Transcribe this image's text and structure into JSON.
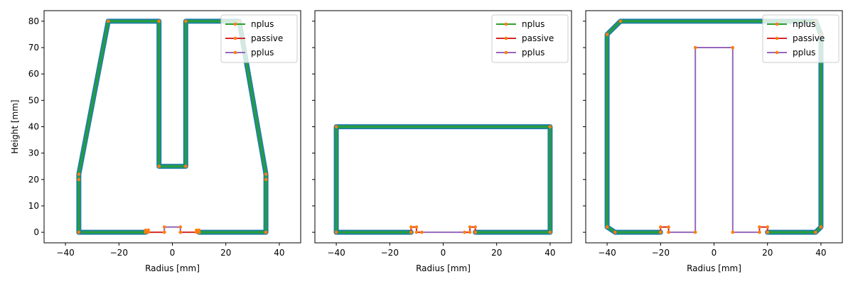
{
  "chart_data": [
    {
      "type": "line",
      "xlabel": "Radius [mm]",
      "ylabel": "Height [mm]",
      "xlim": [
        -48,
        48
      ],
      "ylim": [
        -4,
        84
      ],
      "xticks": [
        -40,
        -20,
        0,
        20,
        40
      ],
      "yticks": [
        0,
        10,
        20,
        30,
        40,
        50,
        60,
        70,
        80
      ],
      "legend_position": "top-right",
      "series": [
        {
          "name": "nplus",
          "color": "#2ca02c",
          "segments": [
            [
              [
                -35,
                0
              ],
              [
                -10,
                0
              ]
            ],
            [
              [
                10,
                0
              ],
              [
                35,
                0
              ],
              [
                35,
                20
              ],
              [
                35,
                22
              ],
              [
                25,
                80
              ],
              [
                5,
                80
              ],
              [
                5,
                25
              ],
              [
                -5,
                25
              ],
              [
                -5,
                80
              ],
              [
                -24,
                80
              ],
              [
                -35,
                22
              ],
              [
                -35,
                20
              ],
              [
                -35,
                0
              ]
            ]
          ]
        },
        {
          "name": "passive",
          "color": "#d62728",
          "segments": [
            [
              [
                -10,
                0
              ],
              [
                -10,
                0.8
              ],
              [
                -9,
                0.8
              ],
              [
                -9,
                0
              ],
              [
                -3,
                0
              ]
            ],
            [
              [
                3,
                0
              ],
              [
                9,
                0
              ],
              [
                9,
                0.8
              ],
              [
                10,
                0.8
              ],
              [
                10,
                0
              ]
            ]
          ]
        },
        {
          "name": "pplus",
          "color": "#9467bd",
          "segments": [
            [
              [
                -3,
                0
              ],
              [
                -3,
                2
              ],
              [
                3,
                2
              ],
              [
                3,
                0
              ]
            ]
          ]
        }
      ]
    },
    {
      "type": "line",
      "xlabel": "Radius [mm]",
      "ylabel": "",
      "xlim": [
        -48,
        48
      ],
      "ylim": [
        -4,
        84
      ],
      "xticks": [
        -40,
        -20,
        0,
        20,
        40
      ],
      "yticks": [
        0,
        10,
        20,
        30,
        40,
        50,
        60,
        70,
        80
      ],
      "legend_position": "top-right",
      "series": [
        {
          "name": "nplus",
          "color": "#2ca02c",
          "segments": [
            [
              [
                -40,
                0
              ],
              [
                -12,
                0
              ]
            ],
            [
              [
                12,
                0
              ],
              [
                40,
                0
              ],
              [
                40,
                40
              ],
              [
                -40,
                40
              ],
              [
                -40,
                0
              ]
            ]
          ]
        },
        {
          "name": "passive",
          "color": "#d62728",
          "segments": [
            [
              [
                -12,
                0
              ],
              [
                -12,
                2
              ],
              [
                -10,
                2
              ],
              [
                -10,
                0
              ],
              [
                -8,
                0
              ]
            ],
            [
              [
                8,
                0
              ],
              [
                10,
                0
              ],
              [
                10,
                2
              ],
              [
                12,
                2
              ],
              [
                12,
                0
              ]
            ]
          ]
        },
        {
          "name": "pplus",
          "color": "#9467bd",
          "segments": [
            [
              [
                -8,
                0
              ],
              [
                8,
                0
              ]
            ]
          ]
        }
      ]
    },
    {
      "type": "line",
      "xlabel": "Radius [mm]",
      "ylabel": "",
      "xlim": [
        -48,
        48
      ],
      "ylim": [
        -4,
        84
      ],
      "xticks": [
        -40,
        -20,
        0,
        20,
        40
      ],
      "yticks": [
        0,
        10,
        20,
        30,
        40,
        50,
        60,
        70,
        80
      ],
      "legend_position": "top-right",
      "series": [
        {
          "name": "nplus",
          "color": "#2ca02c",
          "segments": [
            [
              [
                -37,
                0
              ],
              [
                -20,
                0
              ]
            ],
            [
              [
                20,
                0
              ],
              [
                38,
                0
              ],
              [
                40,
                2
              ],
              [
                40,
                75
              ],
              [
                38,
                80
              ],
              [
                -35,
                80
              ],
              [
                -40,
                75
              ],
              [
                -40,
                2
              ],
              [
                -37,
                0
              ]
            ]
          ]
        },
        {
          "name": "passive",
          "color": "#d62728",
          "segments": [
            [
              [
                -20,
                0
              ],
              [
                -20,
                2
              ],
              [
                -17,
                2
              ],
              [
                -17,
                0
              ]
            ],
            [
              [
                17,
                0
              ],
              [
                17,
                2
              ],
              [
                20,
                2
              ],
              [
                20,
                0
              ]
            ]
          ]
        },
        {
          "name": "pplus",
          "color": "#9467bd",
          "segments": [
            [
              [
                -17,
                0
              ],
              [
                -7,
                0
              ],
              [
                -7,
                70
              ],
              [
                7,
                70
              ],
              [
                7,
                0
              ],
              [
                17,
                0
              ]
            ]
          ]
        }
      ]
    }
  ]
}
